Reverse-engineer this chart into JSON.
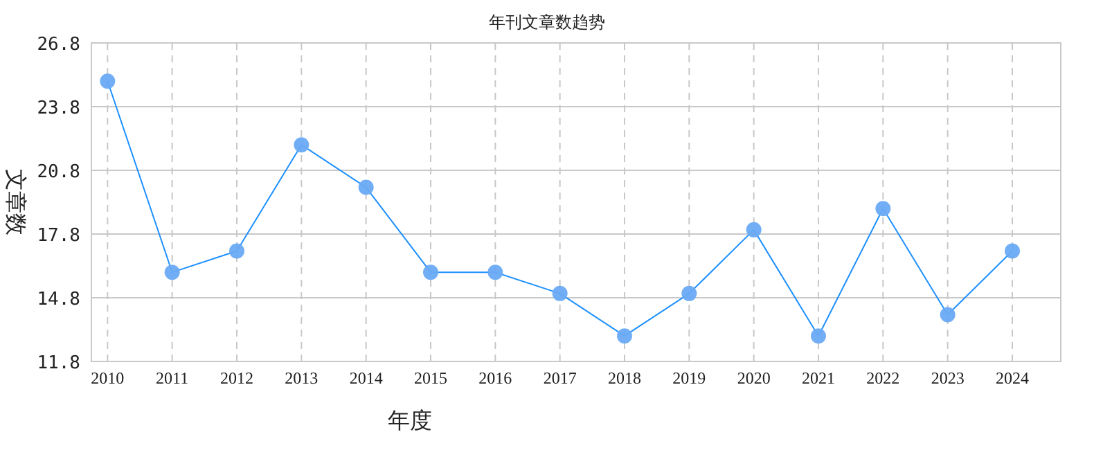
{
  "chart_data": {
    "type": "line",
    "title": "年刊文章数趋势",
    "xlabel": "年度",
    "ylabel": "文章数",
    "categories": [
      "2010",
      "2011",
      "2012",
      "2013",
      "2014",
      "2015",
      "2016",
      "2017",
      "2018",
      "2019",
      "2020",
      "2021",
      "2022",
      "2023",
      "2024"
    ],
    "series": [
      {
        "color": "#1e90ff",
        "values": [
          25,
          16,
          17,
          22,
          20,
          16,
          16,
          15,
          13,
          15,
          18,
          13,
          19,
          14,
          17
        ]
      }
    ],
    "ylim": [
      11.8,
      26.8
    ],
    "yticks": [
      11.8,
      14.8,
      17.8,
      20.8,
      23.8,
      26.8
    ],
    "grid": true,
    "marker": "circle",
    "line_style": "solid"
  }
}
